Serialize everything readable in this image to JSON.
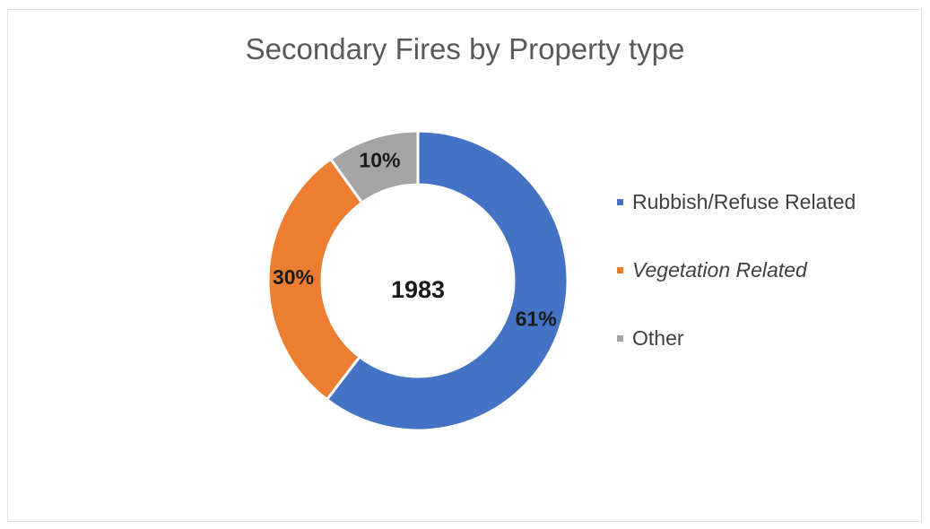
{
  "chart_data": {
    "type": "pie",
    "style": "donut",
    "title": "Secondary Fires by Property type",
    "center_label": "1983",
    "slices": [
      {
        "name": "Rubbish/Refuse Related",
        "value": 61,
        "label": "61%",
        "color": "#4472C4"
      },
      {
        "name": "Vegetation Related",
        "value": 30,
        "label": "30%",
        "color": "#ED7D31"
      },
      {
        "name": "Other",
        "value": 10,
        "label": "10%",
        "color": "#A5A5A5"
      }
    ],
    "legend_position": "right"
  }
}
